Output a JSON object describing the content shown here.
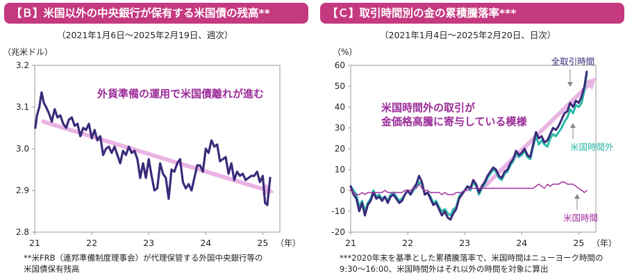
{
  "panels": {
    "b": {
      "title": "【Ｂ】米国以外の中央銀行が保有する米国債の残高**",
      "subtitle": "（2021年1月6日～2025年2月19日、週次）",
      "unit": "（兆米ドル）",
      "footnote_line1": "**米FRB（連邦準備制度理事会）が代理保管する外国中央銀行等の",
      "footnote_line2": "米国債保有残高"
    },
    "c": {
      "title": "【Ｃ】取引時間別の金の累積騰落率***",
      "subtitle": "（2021年1月4日～2025年2月20日、日次）",
      "unit": "（%）",
      "footnote_line1": "***2020年末を基準とした累積騰落率で、米国時間はニューヨーク時間の",
      "footnote_line2": "9:30～16:00、米国時間外はそれ以外の時間を対象に算出"
    }
  },
  "colors": {
    "title_bg": "#c5397f",
    "navy": "#3b2a7a",
    "teal": "#2ab8a8",
    "purple": "#a42fa0",
    "arrow": "#e9b4e3",
    "annotation": "#9b2b98",
    "label_gray": "#666666"
  },
  "chart_data": [
    {
      "type": "line",
      "title": "【Ｂ】米国以外の中央銀行が保有する米国債の残高**",
      "ylabel": "（兆米ドル）",
      "xlabel": "（年）",
      "x_ticks": [
        "21",
        "22",
        "23",
        "24",
        "25"
      ],
      "xlim": [
        2021.0,
        2025.3
      ],
      "ylim": [
        2.8,
        3.2
      ],
      "y_ticks": [
        "3.2",
        "3.1",
        "3.0",
        "2.9",
        "2.8"
      ],
      "y_tick_values": [
        3.2,
        3.1,
        3.0,
        2.9,
        2.8
      ],
      "annotation": "外貨準備の運用で米国債離れが進む",
      "trend_arrow": {
        "from": [
          2021.15,
          3.065
        ],
        "to": [
          2025.2,
          2.895
        ]
      },
      "series": [
        {
          "x": [
            2021.01,
            2021.04,
            2021.08,
            2021.12,
            2021.16,
            2021.2,
            2021.25,
            2021.3,
            2021.35,
            2021.4,
            2021.45,
            2021.5,
            2021.55,
            2021.6,
            2021.65,
            2021.7,
            2021.75,
            2021.8,
            2021.85,
            2021.9,
            2021.95,
            2022.0,
            2022.05,
            2022.1,
            2022.15,
            2022.2,
            2022.25,
            2022.3,
            2022.35,
            2022.4,
            2022.45,
            2022.5,
            2022.55,
            2022.6,
            2022.65,
            2022.7,
            2022.75,
            2022.8,
            2022.85,
            2022.9,
            2022.95,
            2023.0,
            2023.05,
            2023.1,
            2023.15,
            2023.2,
            2023.25,
            2023.3,
            2023.35,
            2023.4,
            2023.45,
            2023.5,
            2023.55,
            2023.6,
            2023.65,
            2023.7,
            2023.75,
            2023.8,
            2023.85,
            2023.9,
            2023.95,
            2024.0,
            2024.05,
            2024.1,
            2024.15,
            2024.2,
            2024.25,
            2024.3,
            2024.35,
            2024.4,
            2024.45,
            2024.5,
            2024.55,
            2024.6,
            2024.65,
            2024.7,
            2024.75,
            2024.8,
            2024.85,
            2024.9,
            2024.95,
            2025.0,
            2025.04,
            2025.08,
            2025.13
          ],
          "values": [
            3.05,
            3.08,
            3.1,
            3.135,
            3.11,
            3.1,
            3.085,
            3.065,
            3.095,
            3.075,
            3.08,
            3.06,
            3.05,
            3.07,
            3.075,
            3.055,
            3.06,
            3.03,
            3.05,
            3.045,
            3.06,
            3.025,
            3.045,
            3.02,
            3.03,
            2.985,
            3.0,
            3.005,
            2.99,
            3.005,
            2.985,
            2.965,
            2.995,
            2.985,
            3.005,
            2.99,
            2.995,
            2.975,
            2.93,
            2.965,
            2.93,
            2.975,
            2.935,
            2.9,
            2.905,
            2.965,
            2.94,
            2.93,
            2.88,
            2.95,
            2.945,
            2.965,
            2.975,
            2.92,
            2.905,
            2.915,
            2.9,
            2.93,
            2.96,
            2.96,
            2.945,
            3.0,
            2.99,
            3.02,
            3.005,
            3.01,
            2.97,
            2.975,
            2.98,
            2.94,
            2.965,
            2.925,
            2.945,
            2.935,
            2.94,
            2.925,
            2.93,
            2.935,
            2.935,
            2.945,
            2.92,
            2.935,
            2.87,
            2.865,
            2.93
          ]
        }
      ]
    },
    {
      "type": "line",
      "title": "【Ｃ】取引時間別の金の累積騰落率***",
      "ylabel": "（%）",
      "xlabel": "（年）",
      "x_ticks": [
        "21",
        "22",
        "23",
        "24",
        "25"
      ],
      "xlim": [
        2021.0,
        2025.3
      ],
      "ylim": [
        -20,
        60
      ],
      "y_ticks": [
        "60",
        "50",
        "40",
        "30",
        "20",
        "10",
        "0",
        "-10",
        "-20"
      ],
      "y_tick_values": [
        60,
        50,
        40,
        30,
        20,
        10,
        0,
        -10,
        -20
      ],
      "annotation_line1": "米国時間外の取引が",
      "annotation_line2": "金価格高騰に寄与している模様",
      "trend_arrow": {
        "from": [
          2023.35,
          2
        ],
        "to": [
          2025.3,
          54
        ]
      },
      "labels": {
        "total": "全取引時間",
        "offhours": "米国時間外",
        "us": "米国時間"
      },
      "series": [
        {
          "name": "米国時間外",
          "x": [
            2021.0,
            2021.05,
            2021.1,
            2021.15,
            2021.2,
            2021.25,
            2021.3,
            2021.35,
            2021.4,
            2021.45,
            2021.5,
            2021.55,
            2021.6,
            2021.65,
            2021.7,
            2021.75,
            2021.8,
            2021.85,
            2021.9,
            2021.95,
            2022.0,
            2022.05,
            2022.1,
            2022.15,
            2022.2,
            2022.25,
            2022.3,
            2022.35,
            2022.4,
            2022.45,
            2022.5,
            2022.55,
            2022.6,
            2022.65,
            2022.7,
            2022.75,
            2022.8,
            2022.85,
            2022.9,
            2022.95,
            2023.0,
            2023.05,
            2023.1,
            2023.15,
            2023.2,
            2023.25,
            2023.3,
            2023.35,
            2023.4,
            2023.45,
            2023.5,
            2023.55,
            2023.6,
            2023.65,
            2023.7,
            2023.75,
            2023.8,
            2023.85,
            2023.9,
            2023.95,
            2024.0,
            2024.05,
            2024.1,
            2024.15,
            2024.2,
            2024.25,
            2024.3,
            2024.35,
            2024.4,
            2024.45,
            2024.5,
            2024.55,
            2024.6,
            2024.65,
            2024.7,
            2024.75,
            2024.8,
            2024.85,
            2024.9,
            2024.95,
            2025.0,
            2025.05,
            2025.1,
            2025.14
          ],
          "values": [
            2,
            0,
            -2,
            -8,
            -5,
            -10,
            -6,
            -4,
            0,
            -3,
            -2,
            -4,
            -3,
            -5,
            -2,
            -1,
            -3,
            -5,
            -4,
            -2,
            0,
            -2,
            0,
            2,
            4,
            3,
            -2,
            -1,
            -3,
            -6,
            -5,
            -8,
            -10,
            -9,
            -11,
            -12,
            -9,
            -8,
            -3,
            -1,
            0,
            2,
            0,
            4,
            2,
            -2,
            1,
            3,
            6,
            8,
            10,
            9,
            6,
            5,
            8,
            9,
            12,
            14,
            18,
            16,
            17,
            19,
            16,
            15,
            21,
            26,
            22,
            24,
            22,
            21,
            25,
            27,
            26,
            28,
            30,
            33,
            35,
            39,
            37,
            41,
            40,
            42,
            48,
            56
          ]
        },
        {
          "name": "全取引時間",
          "x": [
            2021.0,
            2021.05,
            2021.1,
            2021.15,
            2021.2,
            2021.25,
            2021.3,
            2021.35,
            2021.4,
            2021.45,
            2021.5,
            2021.55,
            2021.6,
            2021.65,
            2021.7,
            2021.75,
            2021.8,
            2021.85,
            2021.9,
            2021.95,
            2022.0,
            2022.05,
            2022.1,
            2022.15,
            2022.2,
            2022.25,
            2022.3,
            2022.35,
            2022.4,
            2022.45,
            2022.5,
            2022.55,
            2022.6,
            2022.65,
            2022.7,
            2022.75,
            2022.8,
            2022.85,
            2022.9,
            2022.95,
            2023.0,
            2023.05,
            2023.1,
            2023.15,
            2023.2,
            2023.25,
            2023.3,
            2023.35,
            2023.4,
            2023.45,
            2023.5,
            2023.55,
            2023.6,
            2023.65,
            2023.7,
            2023.75,
            2023.8,
            2023.85,
            2023.9,
            2023.95,
            2024.0,
            2024.05,
            2024.1,
            2024.15,
            2024.2,
            2024.25,
            2024.3,
            2024.35,
            2024.4,
            2024.45,
            2024.5,
            2024.55,
            2024.6,
            2024.65,
            2024.7,
            2024.75,
            2024.8,
            2024.85,
            2024.9,
            2024.95,
            2025.0,
            2025.05,
            2025.1,
            2025.14
          ],
          "values": [
            2,
            -2,
            -4,
            -10,
            -6,
            -12,
            -7,
            -5,
            -1,
            -4,
            -3,
            -5,
            -3,
            -6,
            -3,
            -2,
            -4,
            -6,
            -5,
            -2,
            0,
            -2,
            1,
            3,
            7,
            4,
            -2,
            -1,
            -4,
            -7,
            -6,
            -9,
            -12,
            -10,
            -13,
            -14,
            -11,
            -9,
            -4,
            -2,
            0,
            2,
            1,
            5,
            3,
            -1,
            2,
            4,
            7,
            9,
            11,
            10,
            7,
            6,
            9,
            10,
            13,
            15,
            19,
            17,
            18,
            20,
            17,
            16,
            22,
            28,
            25,
            26,
            23,
            24,
            27,
            30,
            29,
            31,
            34,
            37,
            38,
            42,
            40,
            43,
            42,
            45,
            50,
            57
          ]
        },
        {
          "name": "米国時間",
          "x": [
            2021.0,
            2021.05,
            2021.1,
            2021.15,
            2021.2,
            2021.25,
            2021.3,
            2021.35,
            2021.4,
            2021.45,
            2021.5,
            2021.55,
            2021.6,
            2021.65,
            2021.7,
            2021.75,
            2021.8,
            2021.85,
            2021.9,
            2021.95,
            2022.0,
            2022.05,
            2022.1,
            2022.15,
            2022.2,
            2022.25,
            2022.3,
            2022.35,
            2022.4,
            2022.45,
            2022.5,
            2022.55,
            2022.6,
            2022.65,
            2022.7,
            2022.75,
            2022.8,
            2022.85,
            2022.9,
            2022.95,
            2023.0,
            2023.05,
            2023.1,
            2023.15,
            2023.2,
            2023.25,
            2023.3,
            2023.35,
            2023.4,
            2023.45,
            2023.5,
            2023.55,
            2023.6,
            2023.65,
            2023.7,
            2023.75,
            2023.8,
            2023.85,
            2023.9,
            2023.95,
            2024.0,
            2024.05,
            2024.1,
            2024.15,
            2024.2,
            2024.25,
            2024.3,
            2024.35,
            2024.4,
            2024.45,
            2024.5,
            2024.55,
            2024.6,
            2024.65,
            2024.7,
            2024.75,
            2024.8,
            2024.85,
            2024.9,
            2024.95,
            2025.0,
            2025.05,
            2025.1,
            2025.14
          ],
          "values": [
            0,
            -1,
            -2,
            -2,
            -1,
            -2,
            -1,
            -1,
            -1,
            -1,
            -1,
            -1,
            0,
            -1,
            -1,
            -1,
            -1,
            -1,
            -1,
            0,
            0,
            0,
            1,
            1,
            3,
            1,
            0,
            0,
            -1,
            -1,
            -1,
            -1,
            -2,
            -1,
            -2,
            -2,
            -2,
            -1,
            -1,
            -1,
            0,
            0,
            1,
            1,
            1,
            1,
            1,
            1,
            1,
            1,
            1,
            1,
            1,
            1,
            1,
            1,
            1,
            1,
            1,
            1,
            1,
            1,
            1,
            1,
            1,
            2,
            3,
            2,
            1,
            3,
            2,
            3,
            3,
            3,
            4,
            4,
            3,
            3,
            3,
            2,
            1,
            0,
            -1,
            0
          ]
        }
      ]
    }
  ]
}
